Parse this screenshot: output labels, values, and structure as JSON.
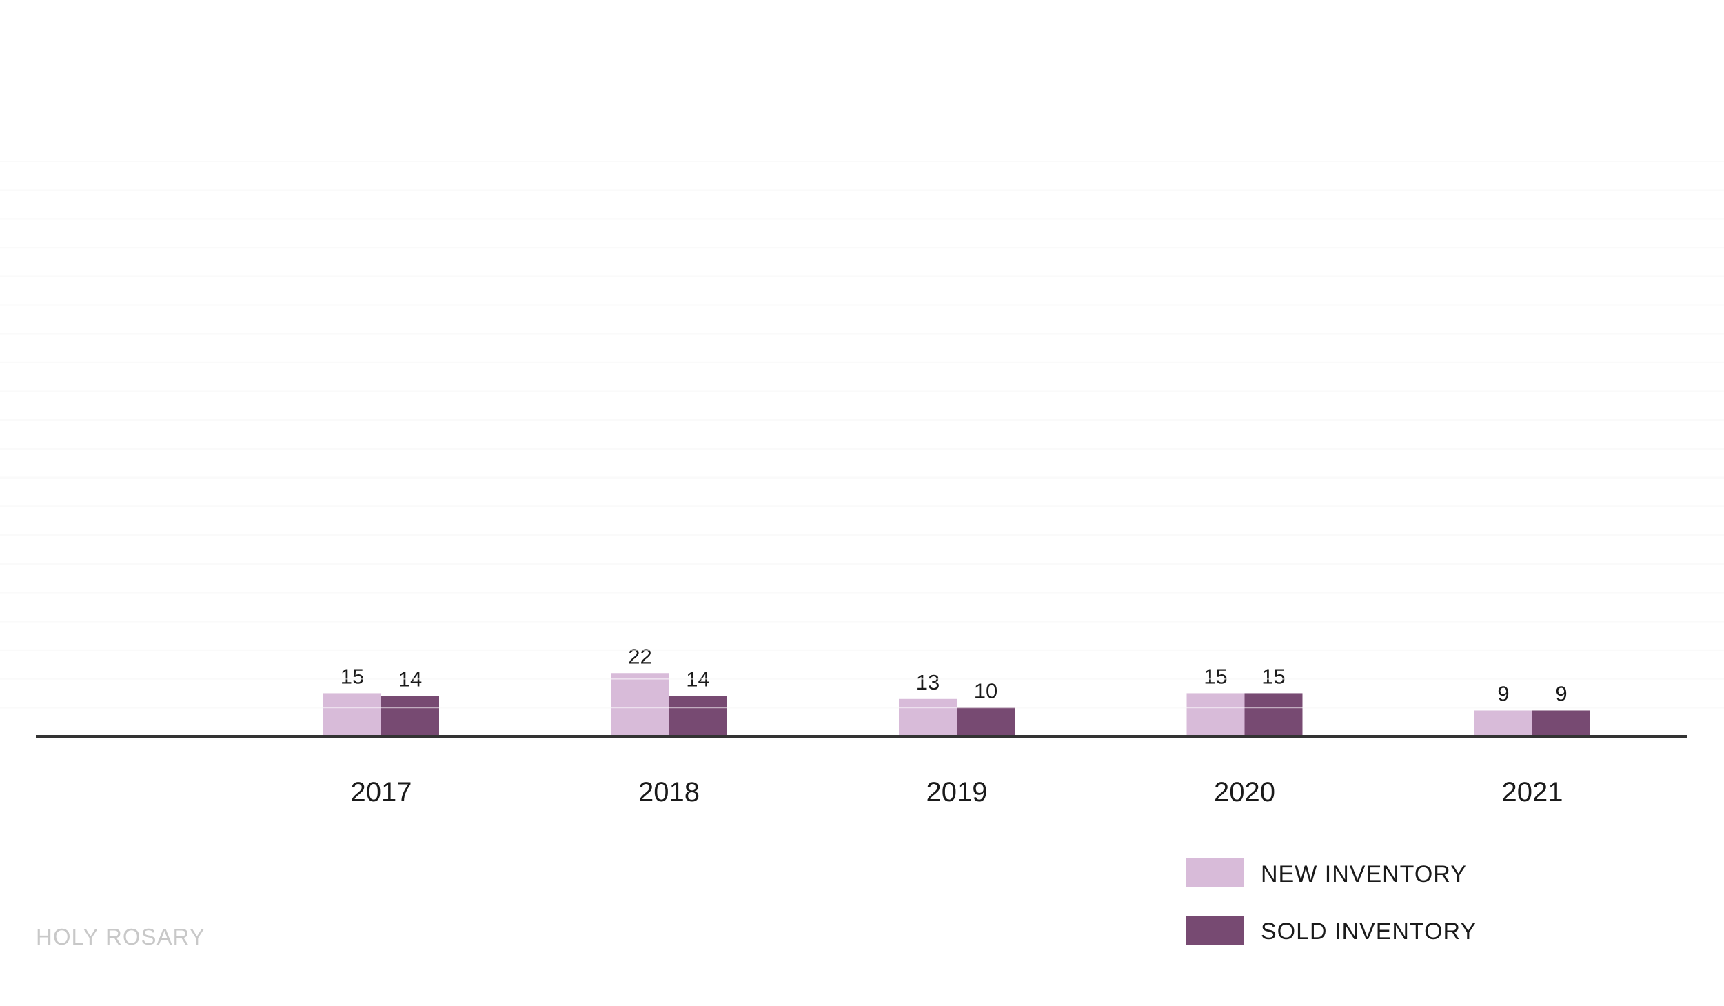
{
  "chart_data": {
    "type": "bar",
    "categories": [
      "2017",
      "2018",
      "2019",
      "2020",
      "2021"
    ],
    "series": [
      {
        "name": "NEW INVENTORY",
        "values": [
          15,
          22,
          13,
          15,
          9
        ],
        "color": "#d8bbd9"
      },
      {
        "name": "SOLD INVENTORY",
        "values": [
          14,
          14,
          10,
          15,
          9
        ],
        "color": "#774a72"
      }
    ],
    "ylim": [
      0,
      200
    ],
    "grid": true,
    "legend_position": "bottom-right",
    "gridline_color": "#f4f4f4",
    "axis_color": "#333333"
  },
  "watermark": "HOLY ROSARY"
}
